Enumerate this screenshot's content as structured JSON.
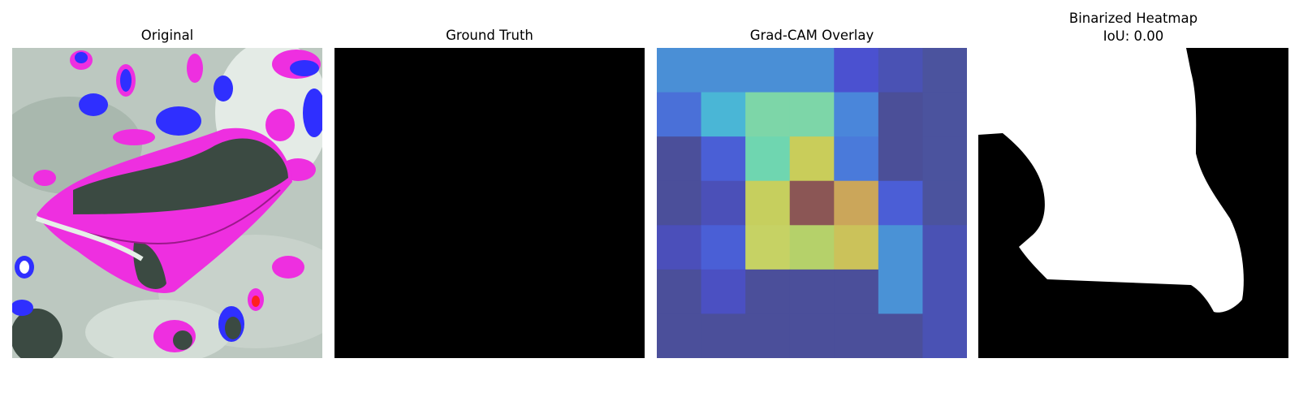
{
  "figure": {
    "panels": [
      {
        "id": "original",
        "title": "Original"
      },
      {
        "id": "ground_truth",
        "title": "Ground Truth"
      },
      {
        "id": "gradcam",
        "title": "Grad-CAM Overlay"
      },
      {
        "id": "binarized",
        "title_line1": "Binarized Heatmap",
        "title_line2": "IoU: 0.00"
      }
    ]
  },
  "gradcam_grid": {
    "rows": 7,
    "cols": 7,
    "colors": [
      [
        "#4a8fd6",
        "#4a8fd6",
        "#4a8fd6",
        "#4a8fd6",
        "#4b51d0",
        "#4a52b4",
        "#4b539e"
      ],
      [
        "#4a70d8",
        "#4ab6d6",
        "#7dd6a8",
        "#7dd6a8",
        "#4a86da",
        "#4b4f98",
        "#4b539e"
      ],
      [
        "#4b4f9a",
        "#4a5fd6",
        "#6fd6b0",
        "#c9cd5a",
        "#4a7ada",
        "#4b4f98",
        "#4b539e"
      ],
      [
        "#4b4f9a",
        "#4b50b8",
        "#c6cf5e",
        "#8b5655",
        "#cba65a",
        "#4b5ed6",
        "#4b539e"
      ],
      [
        "#4b4fba",
        "#4a5fd6",
        "#c6d264",
        "#b5d16a",
        "#cbc25a",
        "#4a92d6",
        "#4a52b4"
      ],
      [
        "#4b4f9a",
        "#4b50c2",
        "#4b4f9a",
        "#4b4f9a",
        "#4b4f9a",
        "#4a92d6",
        "#4a52b4"
      ],
      [
        "#4b4f9a",
        "#4b4f9a",
        "#4b4f9a",
        "#4b4f9a",
        "#4b4f9a",
        "#4b4f9a",
        "#4a52b4"
      ]
    ]
  },
  "colors": {
    "ground_truth_fill": "#000000",
    "binarized_background": "#000000",
    "binarized_foreground": "#ffffff",
    "original_background": "#bcc8c0",
    "original_magenta": "#ee2fe0",
    "original_blue": "#2f2fff",
    "original_dark_leaf": "#3b4a42"
  }
}
